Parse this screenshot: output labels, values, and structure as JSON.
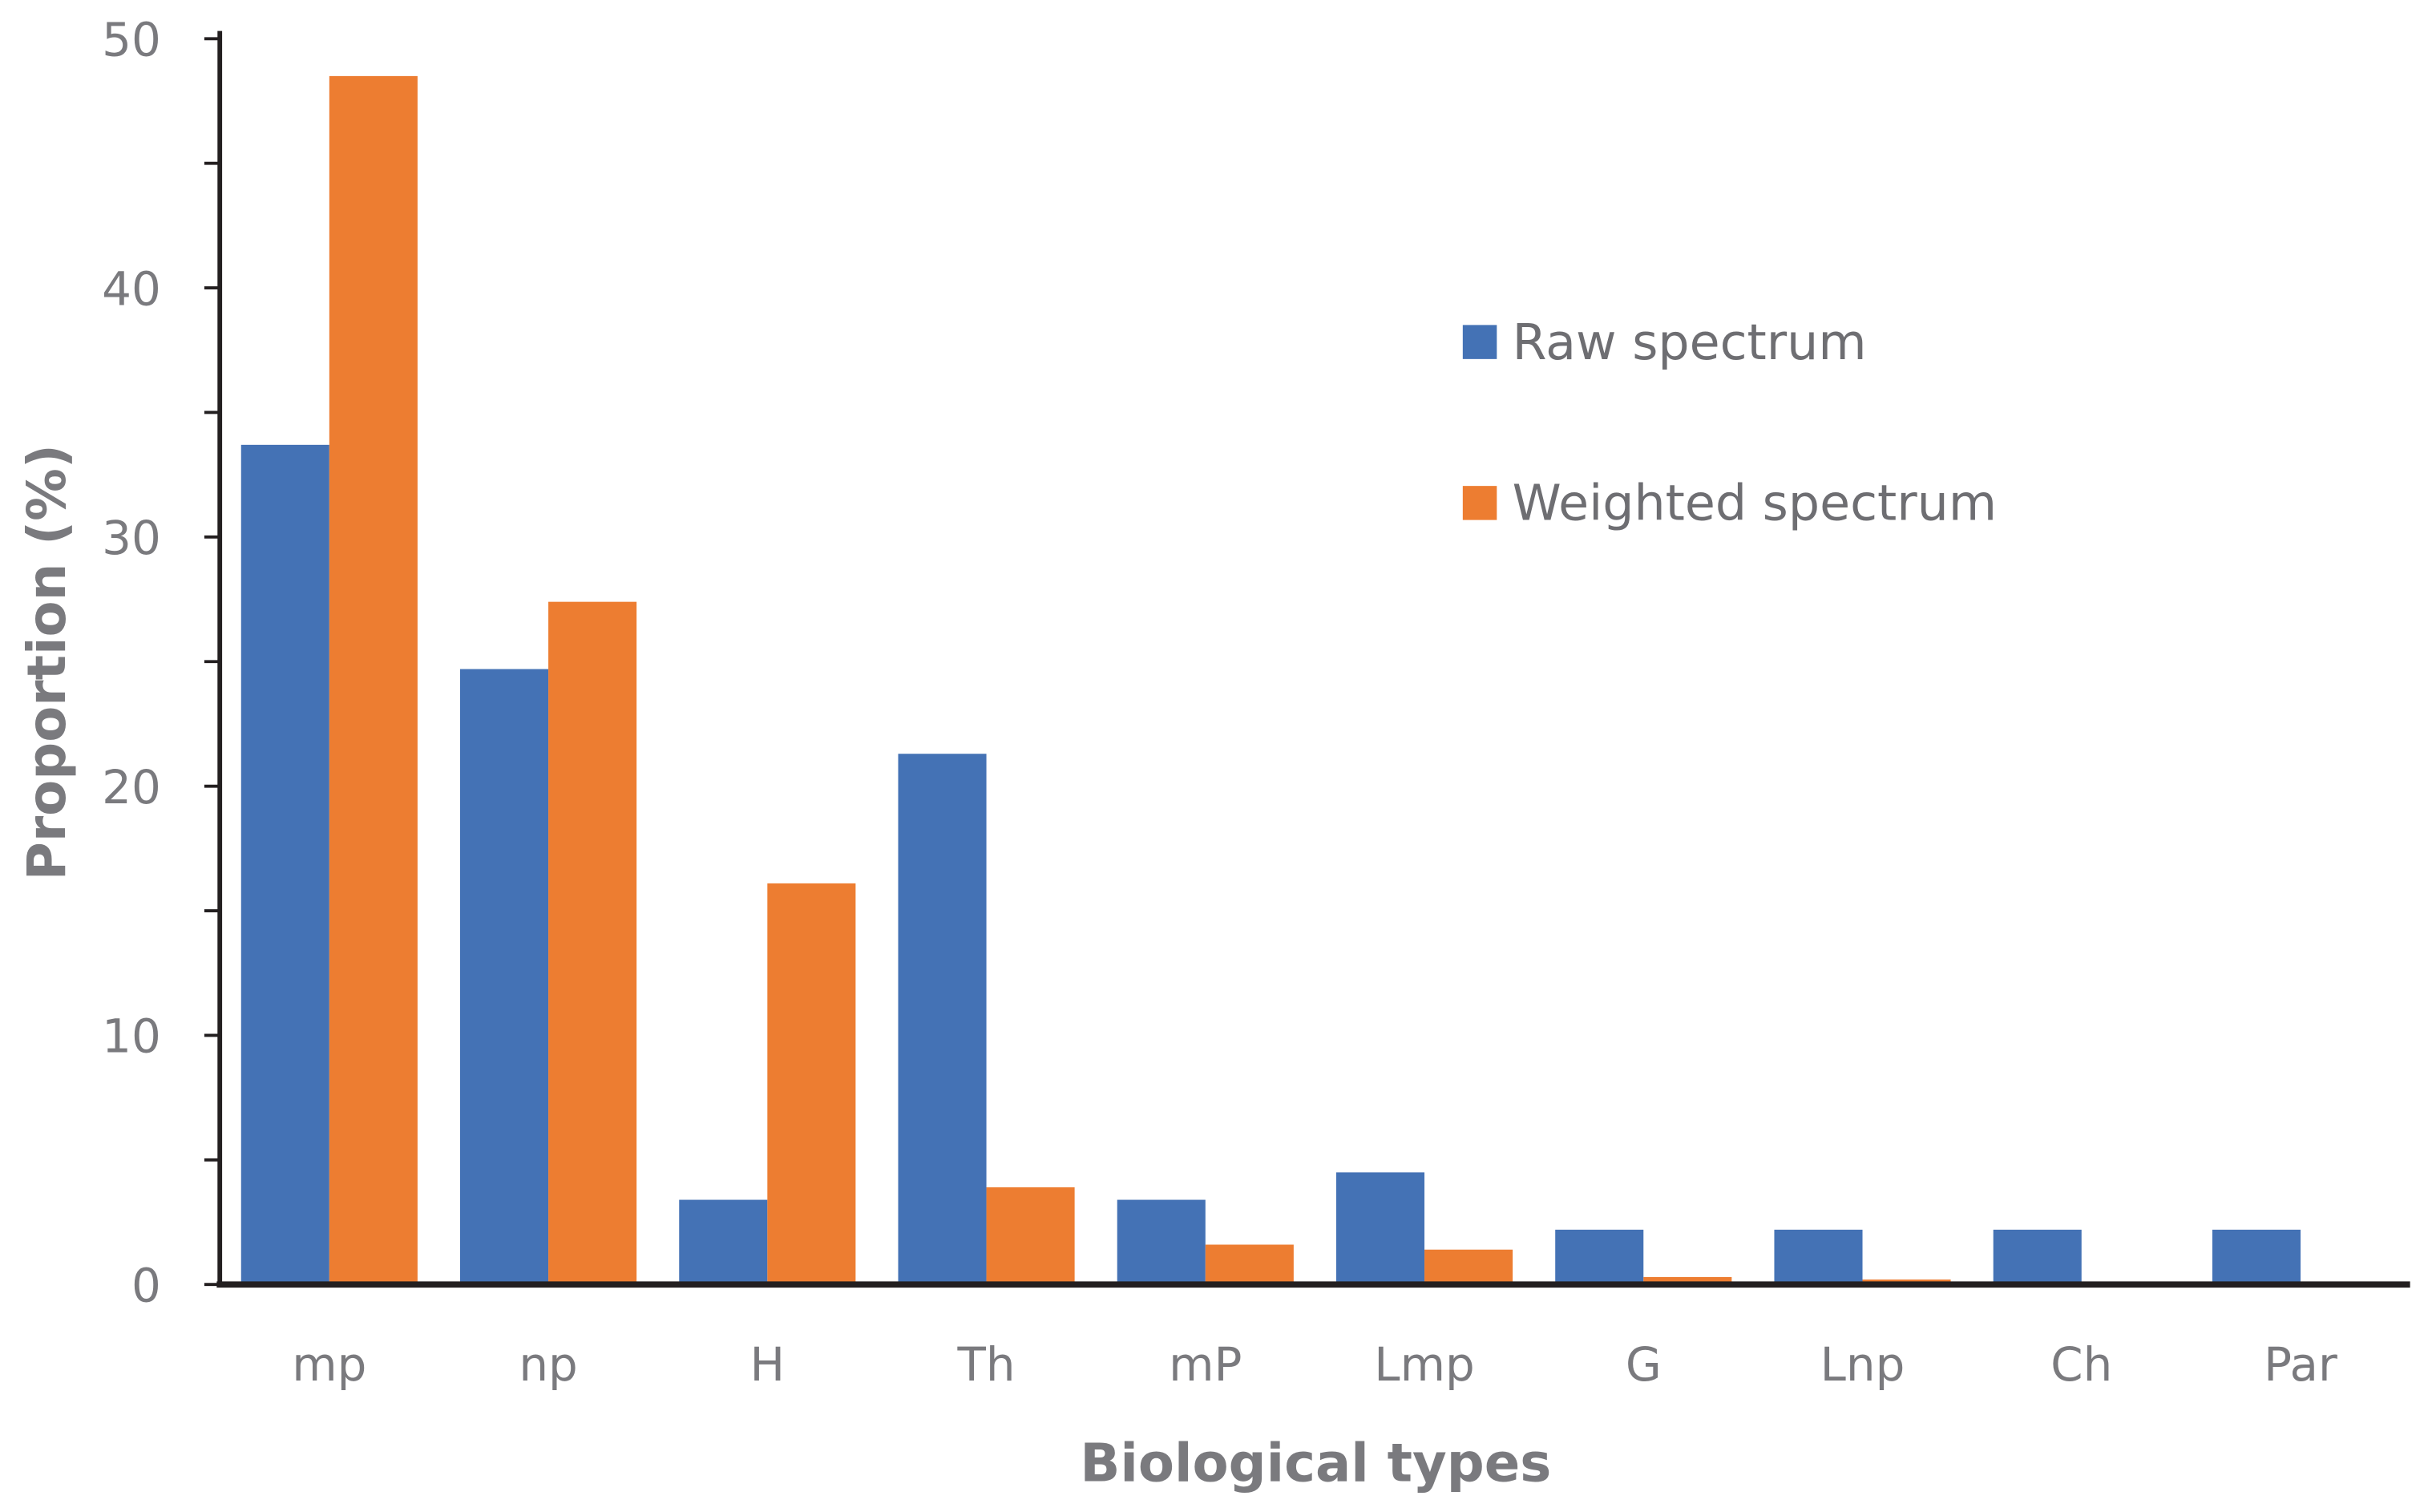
{
  "chart_data": {
    "type": "bar",
    "title": "",
    "xlabel": "Biological types",
    "ylabel": "Proportion (%)",
    "ylim": [
      0,
      50
    ],
    "yticks": [
      0,
      10,
      20,
      30,
      40,
      50
    ],
    "grid": false,
    "legend_position": "top-right",
    "categories": [
      "mp",
      "np",
      "H",
      "Th",
      "mP",
      "Lmp",
      "G",
      "Lnp",
      "Ch",
      "Par"
    ],
    "series": [
      {
        "name": "Raw spectrum",
        "color": "#4472b5",
        "values": [
          33.7,
          24.7,
          3.4,
          21.3,
          3.4,
          4.5,
          2.2,
          2.2,
          2.2,
          2.2
        ]
      },
      {
        "name": "Weighted spectrum",
        "color": "#ed7d31",
        "values": [
          48.5,
          27.4,
          16.1,
          3.9,
          1.6,
          1.4,
          0.3,
          0.2,
          0.1,
          0.1
        ]
      }
    ]
  }
}
